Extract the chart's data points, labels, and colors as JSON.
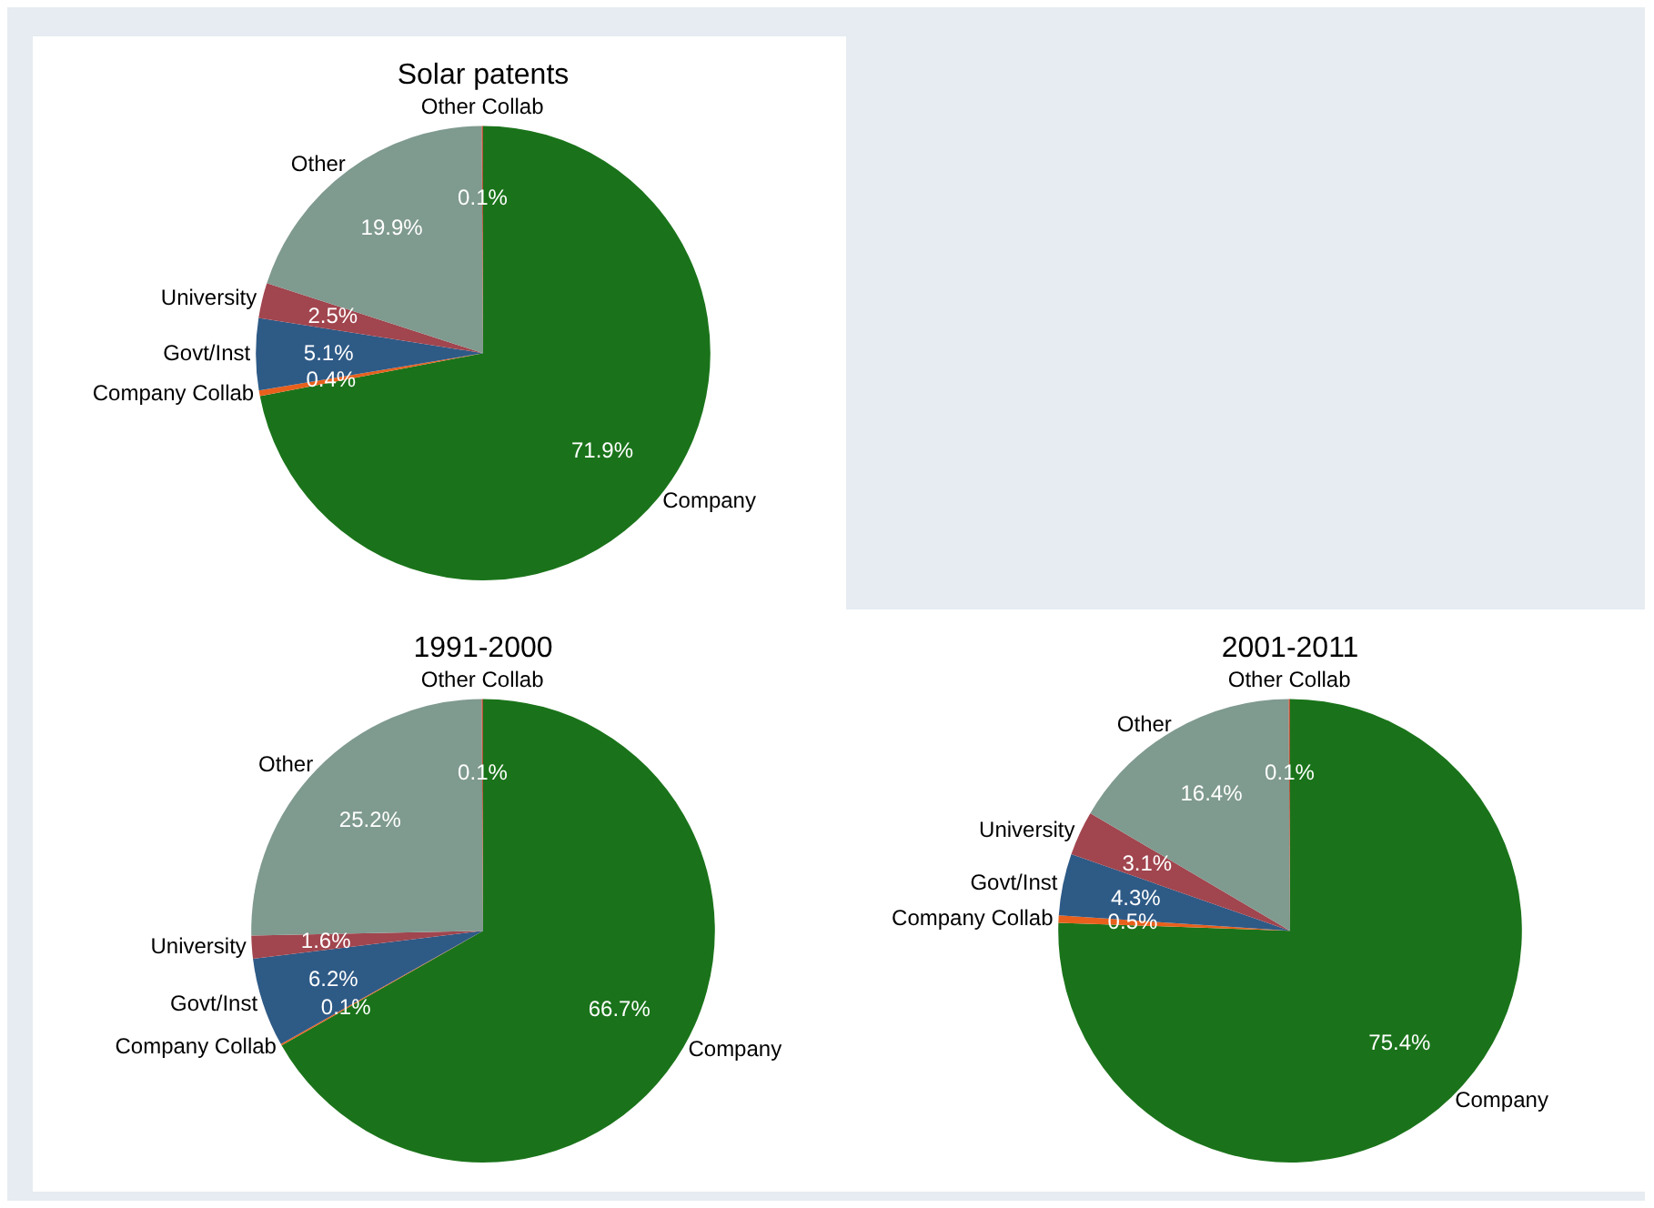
{
  "chart_data": [
    {
      "type": "pie",
      "title": "Solar patents",
      "categories": [
        "Company",
        "Company Collab",
        "Govt/Inst",
        "University",
        "Other",
        "Other Collab"
      ],
      "values": [
        71.9,
        0.4,
        5.1,
        2.5,
        19.9,
        0.1
      ],
      "value_labels": [
        "71.9%",
        "0.4%",
        "5.1%",
        "2.5%",
        "19.9%",
        "0.1%"
      ],
      "colors": [
        "#1a731a",
        "#e8601c",
        "#2e5a86",
        "#a1454e",
        "#7f9a8f",
        "#b8553a"
      ],
      "legend": false
    },
    {
      "type": "pie",
      "title": "1991-2000",
      "categories": [
        "Company",
        "Company Collab",
        "Govt/Inst",
        "University",
        "Other",
        "Other Collab"
      ],
      "values": [
        66.7,
        0.1,
        6.2,
        1.6,
        25.2,
        0.1
      ],
      "value_labels": [
        "66.7%",
        "0.1%",
        "6.2%",
        "1.6%",
        "25.2%",
        "0.1%"
      ],
      "colors": [
        "#1a731a",
        "#e8601c",
        "#2e5a86",
        "#a1454e",
        "#7f9a8f",
        "#b8553a"
      ],
      "legend": false
    },
    {
      "type": "pie",
      "title": "2001-2011",
      "categories": [
        "Company",
        "Company Collab",
        "Govt/Inst",
        "University",
        "Other",
        "Other Collab"
      ],
      "values": [
        75.4,
        0.5,
        4.3,
        3.1,
        16.4,
        0.1
      ],
      "value_labels": [
        "75.4%",
        "0.5%",
        "4.3%",
        "3.1%",
        "16.4%",
        "0.1%"
      ],
      "colors": [
        "#1a731a",
        "#e8601c",
        "#2e5a86",
        "#a1454e",
        "#7f9a8f",
        "#b8553a"
      ],
      "legend": false
    }
  ]
}
